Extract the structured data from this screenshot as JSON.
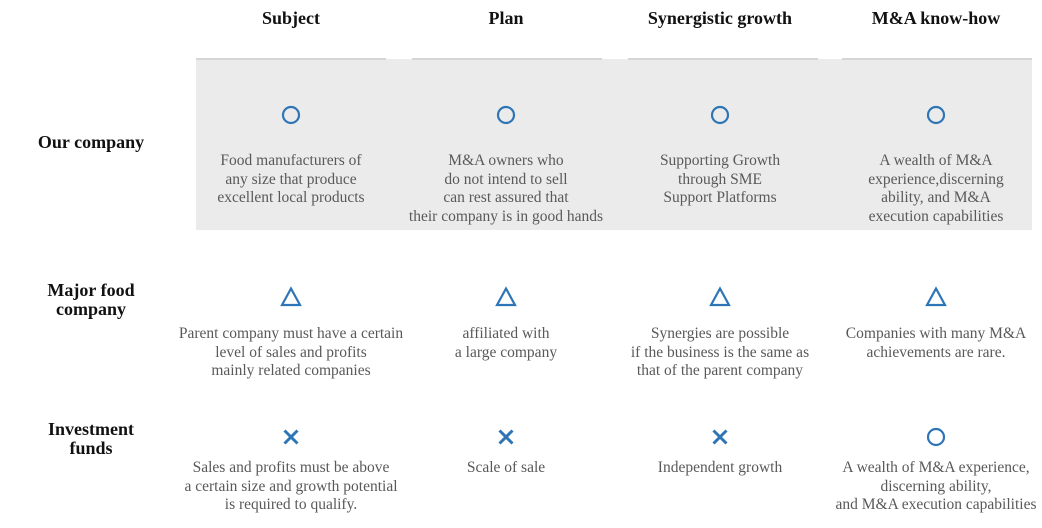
{
  "colors": {
    "accent": "#2e75b6",
    "highlight_band": "#ebebeb"
  },
  "columns": [
    "Subject",
    "Plan",
    "Synergistic growth",
    "M&A know-how"
  ],
  "rows": [
    {
      "label": "Our company",
      "cells": [
        {
          "mark": "circle",
          "text": "Food manufacturers of\nany size that produce\nexcellent local products"
        },
        {
          "mark": "circle",
          "text": "M&A owners who\ndo not intend to sell\ncan rest assured that\ntheir company is in good hands"
        },
        {
          "mark": "circle",
          "text": "Supporting Growth\nthrough SME\nSupport Platforms"
        },
        {
          "mark": "circle",
          "text": "A wealth of M&A\nexperience,discerning\nability, and M&A\nexecution capabilities"
        }
      ]
    },
    {
      "label": "Major food\ncompany",
      "cells": [
        {
          "mark": "triangle",
          "text": "Parent company must have a certain\nlevel of sales and profits\nmainly related companies"
        },
        {
          "mark": "triangle",
          "text": "affiliated with\na large company"
        },
        {
          "mark": "triangle",
          "text": "Synergies are possible\nif the business is the same as\nthat of the parent company"
        },
        {
          "mark": "triangle",
          "text": "Companies with many M&A\nachievements are rare."
        }
      ]
    },
    {
      "label": "Investment\nfunds",
      "cells": [
        {
          "mark": "cross",
          "text": "Sales and profits must be above\na certain size and growth potential\nis required to qualify."
        },
        {
          "mark": "cross",
          "text": "Scale of sale"
        },
        {
          "mark": "cross",
          "text": "Independent growth"
        },
        {
          "mark": "circle",
          "text": "A wealth of M&A experience,\ndiscerning ability,\nand M&A execution capabilities"
        }
      ]
    }
  ]
}
